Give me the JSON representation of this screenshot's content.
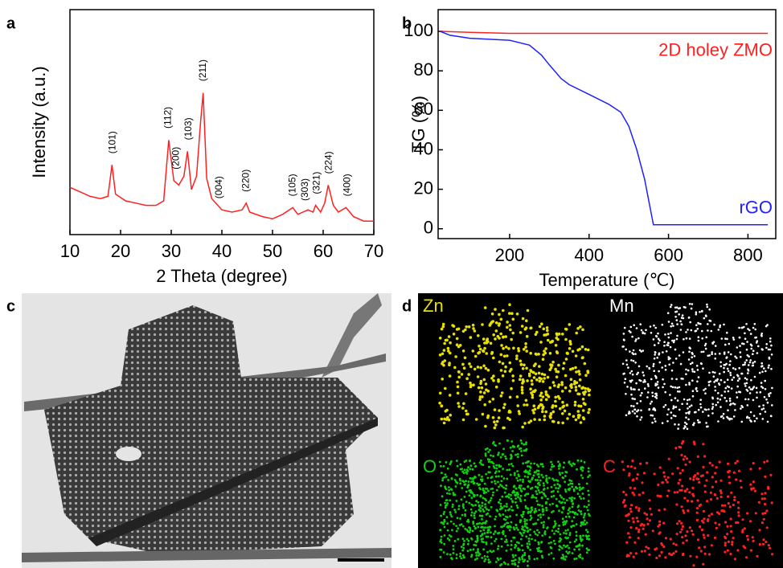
{
  "chart_data": [
    {
      "type": "line",
      "panel": "a",
      "xlabel": "2 Theta (degree)",
      "ylabel": "Intensity (a.u.)",
      "color": "#ff2020",
      "x": [
        10,
        12,
        14,
        16,
        17.5,
        18.3,
        19,
        21,
        23,
        25,
        27,
        28.5,
        29.5,
        30.5,
        31.5,
        32.5,
        33.2,
        34,
        35,
        35.8,
        36.3,
        37,
        38,
        40,
        42,
        44,
        44.8,
        45.5,
        48,
        50,
        52,
        54,
        55,
        56,
        57,
        58,
        58.5,
        59.5,
        60.3,
        61,
        62,
        63,
        64.5,
        66,
        68,
        70
      ],
      "values": [
        21,
        19,
        17,
        16,
        17,
        31,
        18,
        15,
        14,
        13,
        13,
        15,
        42,
        24,
        22,
        26,
        37,
        20,
        26,
        50,
        63,
        25,
        16,
        11,
        10,
        11,
        14,
        10,
        8,
        7,
        9,
        12,
        9,
        10,
        11,
        10,
        13,
        10,
        14,
        22,
        13,
        10,
        12,
        8,
        6,
        6
      ],
      "xlim": [
        10,
        70
      ],
      "xticks": [
        10,
        20,
        30,
        40,
        50,
        60,
        70
      ],
      "ylim": [
        0,
        100
      ],
      "annotations": [
        {
          "text": "(101)",
          "x": 18.5
        },
        {
          "text": "(112)",
          "x": 29.4
        },
        {
          "text": "(200)",
          "x": 31
        },
        {
          "text": "(103)",
          "x": 33.5
        },
        {
          "text": "(211)",
          "x": 36.3
        },
        {
          "text": "(004)",
          "x": 39.5
        },
        {
          "text": "(220)",
          "x": 44.8
        },
        {
          "text": "(105)",
          "x": 54
        },
        {
          "text": "(303)",
          "x": 56.5
        },
        {
          "text": "(321)",
          "x": 58.8
        },
        {
          "text": "(224)",
          "x": 61.2
        },
        {
          "text": "(400)",
          "x": 64.8
        }
      ]
    },
    {
      "type": "line",
      "panel": "b",
      "xlabel": "Temperature (℃)",
      "ylabel": "TG (%)",
      "series": [
        {
          "name": "2D holey ZMO",
          "color": "#ff2020",
          "x": [
            25,
            100,
            200,
            300,
            400,
            500,
            600,
            700,
            800,
            850
          ],
          "values": [
            100,
            99.5,
            99,
            99,
            99,
            99,
            99,
            99,
            99,
            99
          ]
        },
        {
          "name": "rGO",
          "color": "#2020ff",
          "x": [
            25,
            50,
            100,
            150,
            200,
            250,
            280,
            300,
            330,
            350,
            400,
            450,
            480,
            500,
            520,
            540,
            562,
            600,
            700,
            800,
            850
          ],
          "values": [
            100,
            98,
            96.5,
            96,
            95.5,
            93,
            88,
            83,
            76,
            73,
            68,
            63,
            59,
            52,
            40,
            25,
            2,
            2,
            2,
            2,
            2
          ]
        }
      ],
      "xlim": [
        20,
        870
      ],
      "xticks": [
        200,
        400,
        600,
        800
      ],
      "ylim": [
        -5,
        111
      ],
      "yticks": [
        0,
        20,
        40,
        60,
        80,
        100
      ]
    }
  ],
  "images": {
    "tem_label": "c",
    "eds_label": "d",
    "eds_maps": [
      "Zn",
      "Mn",
      "O",
      "C"
    ]
  }
}
